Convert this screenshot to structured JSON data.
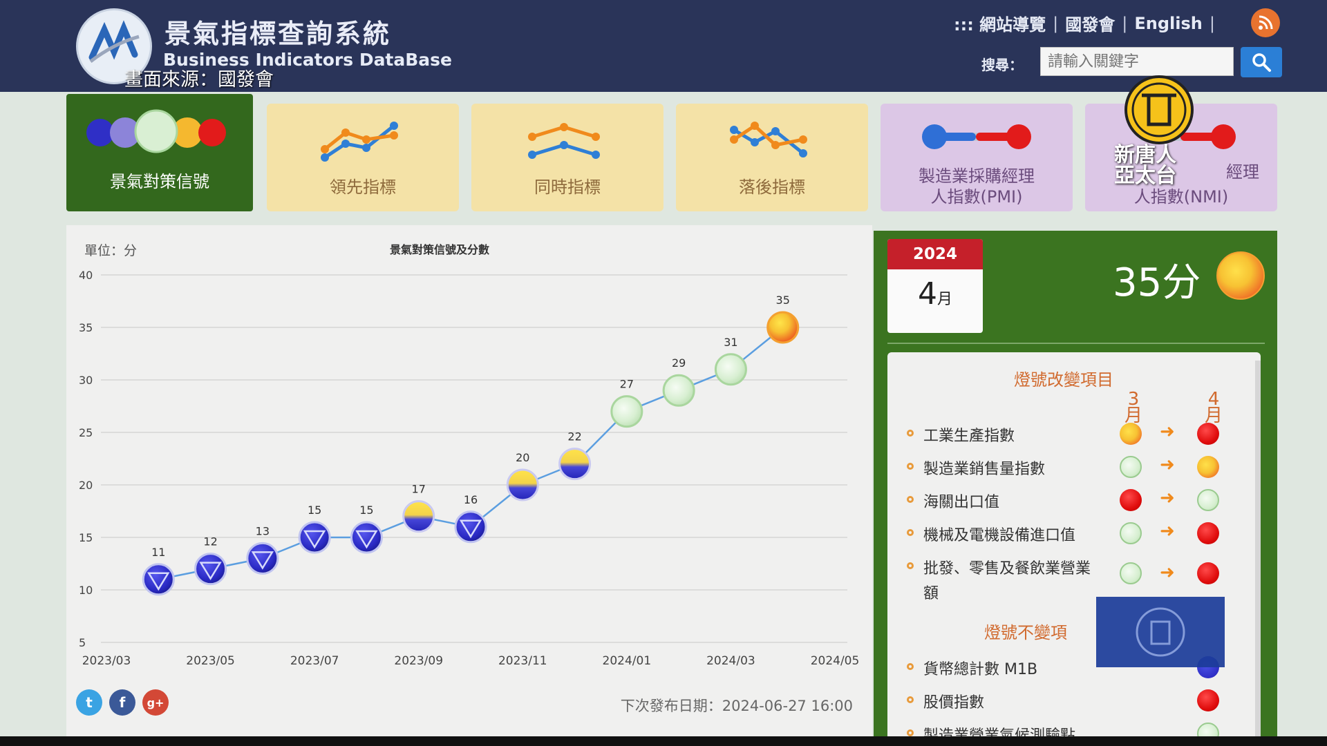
{
  "header": {
    "title": "景氣指標查詢系統",
    "subtitle": "Business Indicators DataBase",
    "source_caption": "畫面來源：國發會",
    "nav": [
      ":::  網站導覽",
      "國發會",
      "English"
    ],
    "search_label": "搜尋：",
    "search_placeholder": "請輸入關鍵字"
  },
  "tabs": [
    {
      "label": "景氣對策信號"
    },
    {
      "label": "領先指標"
    },
    {
      "label": "同時指標"
    },
    {
      "label": "落後指標"
    },
    {
      "label": "製造業採購經理\n人指數(PMI)"
    },
    {
      "label": "人指數(NMI)",
      "label_partial": "經理"
    }
  ],
  "chart_data": {
    "type": "line",
    "title": "景氣對策信號及分數",
    "ylabel": "單位：分",
    "ylim": [
      5,
      40
    ],
    "yticks": [
      5,
      10,
      15,
      20,
      25,
      30,
      35,
      40
    ],
    "xticks": [
      "2023/03",
      "2023/05",
      "2023/07",
      "2023/09",
      "2023/11",
      "2024/01",
      "2024/03",
      "2024/05"
    ],
    "points": [
      {
        "x": "2023/04",
        "y": 11,
        "signal": "blue"
      },
      {
        "x": "2023/05",
        "y": 12,
        "signal": "blue"
      },
      {
        "x": "2023/06",
        "y": 13,
        "signal": "blue"
      },
      {
        "x": "2023/07",
        "y": 15,
        "signal": "blue"
      },
      {
        "x": "2023/08",
        "y": 15,
        "signal": "blue"
      },
      {
        "x": "2023/09",
        "y": 17,
        "signal": "yellow-blue"
      },
      {
        "x": "2023/10",
        "y": 16,
        "signal": "blue"
      },
      {
        "x": "2023/11",
        "y": 20,
        "signal": "yellow-blue"
      },
      {
        "x": "2023/12",
        "y": 22,
        "signal": "yellow-blue"
      },
      {
        "x": "2024/01",
        "y": 27,
        "signal": "green"
      },
      {
        "x": "2024/02",
        "y": 29,
        "signal": "green"
      },
      {
        "x": "2024/03",
        "y": 31,
        "signal": "green"
      },
      {
        "x": "2024/04",
        "y": 35,
        "signal": "yellow-red"
      }
    ],
    "grid": true,
    "legend": "none"
  },
  "pub_date": "下次發布日期：2024-06-27 16:00",
  "current": {
    "year": "2024",
    "month": "4",
    "month_suffix": "月",
    "score": "35分",
    "signal": "yellow-red"
  },
  "changes": {
    "title": "燈號改變項目",
    "prev_month": "3\n月",
    "cur_month": "4\n月",
    "items": [
      {
        "name": "工業生產指數",
        "prev": "yellow-red",
        "cur": "red"
      },
      {
        "name": "製造業銷售量指數",
        "prev": "green",
        "cur": "yellow-red"
      },
      {
        "name": "海關出口值",
        "prev": "red",
        "cur": "green"
      },
      {
        "name": "機械及電機設備進口值",
        "prev": "green",
        "cur": "red"
      },
      {
        "name": "批發、零售及餐飲業營業額",
        "prev": "green",
        "cur": "red"
      }
    ]
  },
  "unchanged": {
    "title": "燈號不變項",
    "items": [
      {
        "name": "貨幣總計數 M1B",
        "cur": "blue"
      },
      {
        "name": "股價指數",
        "cur": "red"
      },
      {
        "name": "製造業營業氣候測驗點",
        "cur": "green"
      }
    ]
  },
  "watermark": {
    "text": "新唐人\n亞太台"
  },
  "colors": {
    "header": "#2a3459",
    "active_tab": "#33681d",
    "panel_green": "#3b7420",
    "accent_orange": "#d16a2e"
  }
}
